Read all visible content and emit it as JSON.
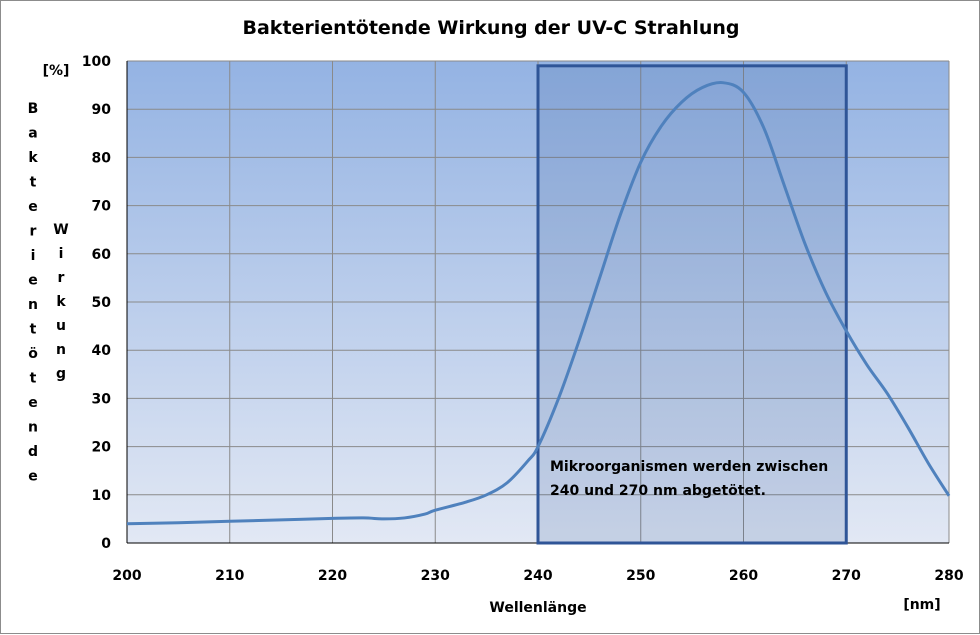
{
  "chart_data": {
    "type": "line",
    "title": "Bakterientötende Wirkung der UV-C Strahlung",
    "xlabel": "Wellenlänge",
    "x_unit": "[nm]",
    "y_unit": "[%]",
    "ylabel_col1": [
      "B",
      "a",
      "k",
      "t",
      "e",
      "r",
      "i",
      "e",
      "n",
      "t",
      "ö",
      "t",
      "e",
      "n",
      "d",
      "e"
    ],
    "ylabel_col2": [
      "W",
      "i",
      "r",
      "k",
      "u",
      "n",
      "g"
    ],
    "xlim": [
      200,
      280
    ],
    "ylim": [
      0,
      100
    ],
    "x_ticks": [
      "200",
      "210",
      "220",
      "230",
      "240",
      "250",
      "260",
      "270",
      "280"
    ],
    "y_ticks": [
      "0",
      "10",
      "20",
      "30",
      "40",
      "50",
      "60",
      "70",
      "80",
      "90",
      "100"
    ],
    "grid": true,
    "series": [
      {
        "color": "#4f81bd",
        "points": [
          [
            200,
            4.0
          ],
          [
            205,
            4.2
          ],
          [
            210,
            4.5
          ],
          [
            215,
            4.8
          ],
          [
            220,
            5.1
          ],
          [
            223,
            5.2
          ],
          [
            225,
            5.0
          ],
          [
            227,
            5.2
          ],
          [
            229,
            6.0
          ],
          [
            230,
            6.8
          ],
          [
            233,
            8.5
          ],
          [
            235,
            10.0
          ],
          [
            237,
            12.5
          ],
          [
            239,
            17.0
          ],
          [
            240,
            20.0
          ],
          [
            242,
            30.0
          ],
          [
            244,
            42.0
          ],
          [
            246,
            55.0
          ],
          [
            248,
            68.0
          ],
          [
            250,
            79.0
          ],
          [
            252,
            86.5
          ],
          [
            254,
            91.5
          ],
          [
            256,
            94.5
          ],
          [
            258,
            95.5
          ],
          [
            260,
            93.5
          ],
          [
            262,
            86.0
          ],
          [
            264,
            74.0
          ],
          [
            266,
            62.0
          ],
          [
            268,
            52.0
          ],
          [
            270,
            44.0
          ],
          [
            272,
            37.0
          ],
          [
            274,
            31.0
          ],
          [
            276,
            24.0
          ],
          [
            278,
            16.5
          ],
          [
            280,
            9.8
          ]
        ]
      }
    ],
    "annotation": {
      "x_range": [
        240,
        270
      ],
      "y_range": [
        0,
        99
      ],
      "border_color": "#2f5597",
      "text_lines": [
        "Mikroorganismen werden zwischen",
        "240 und 270 nm abgetötet."
      ]
    }
  }
}
